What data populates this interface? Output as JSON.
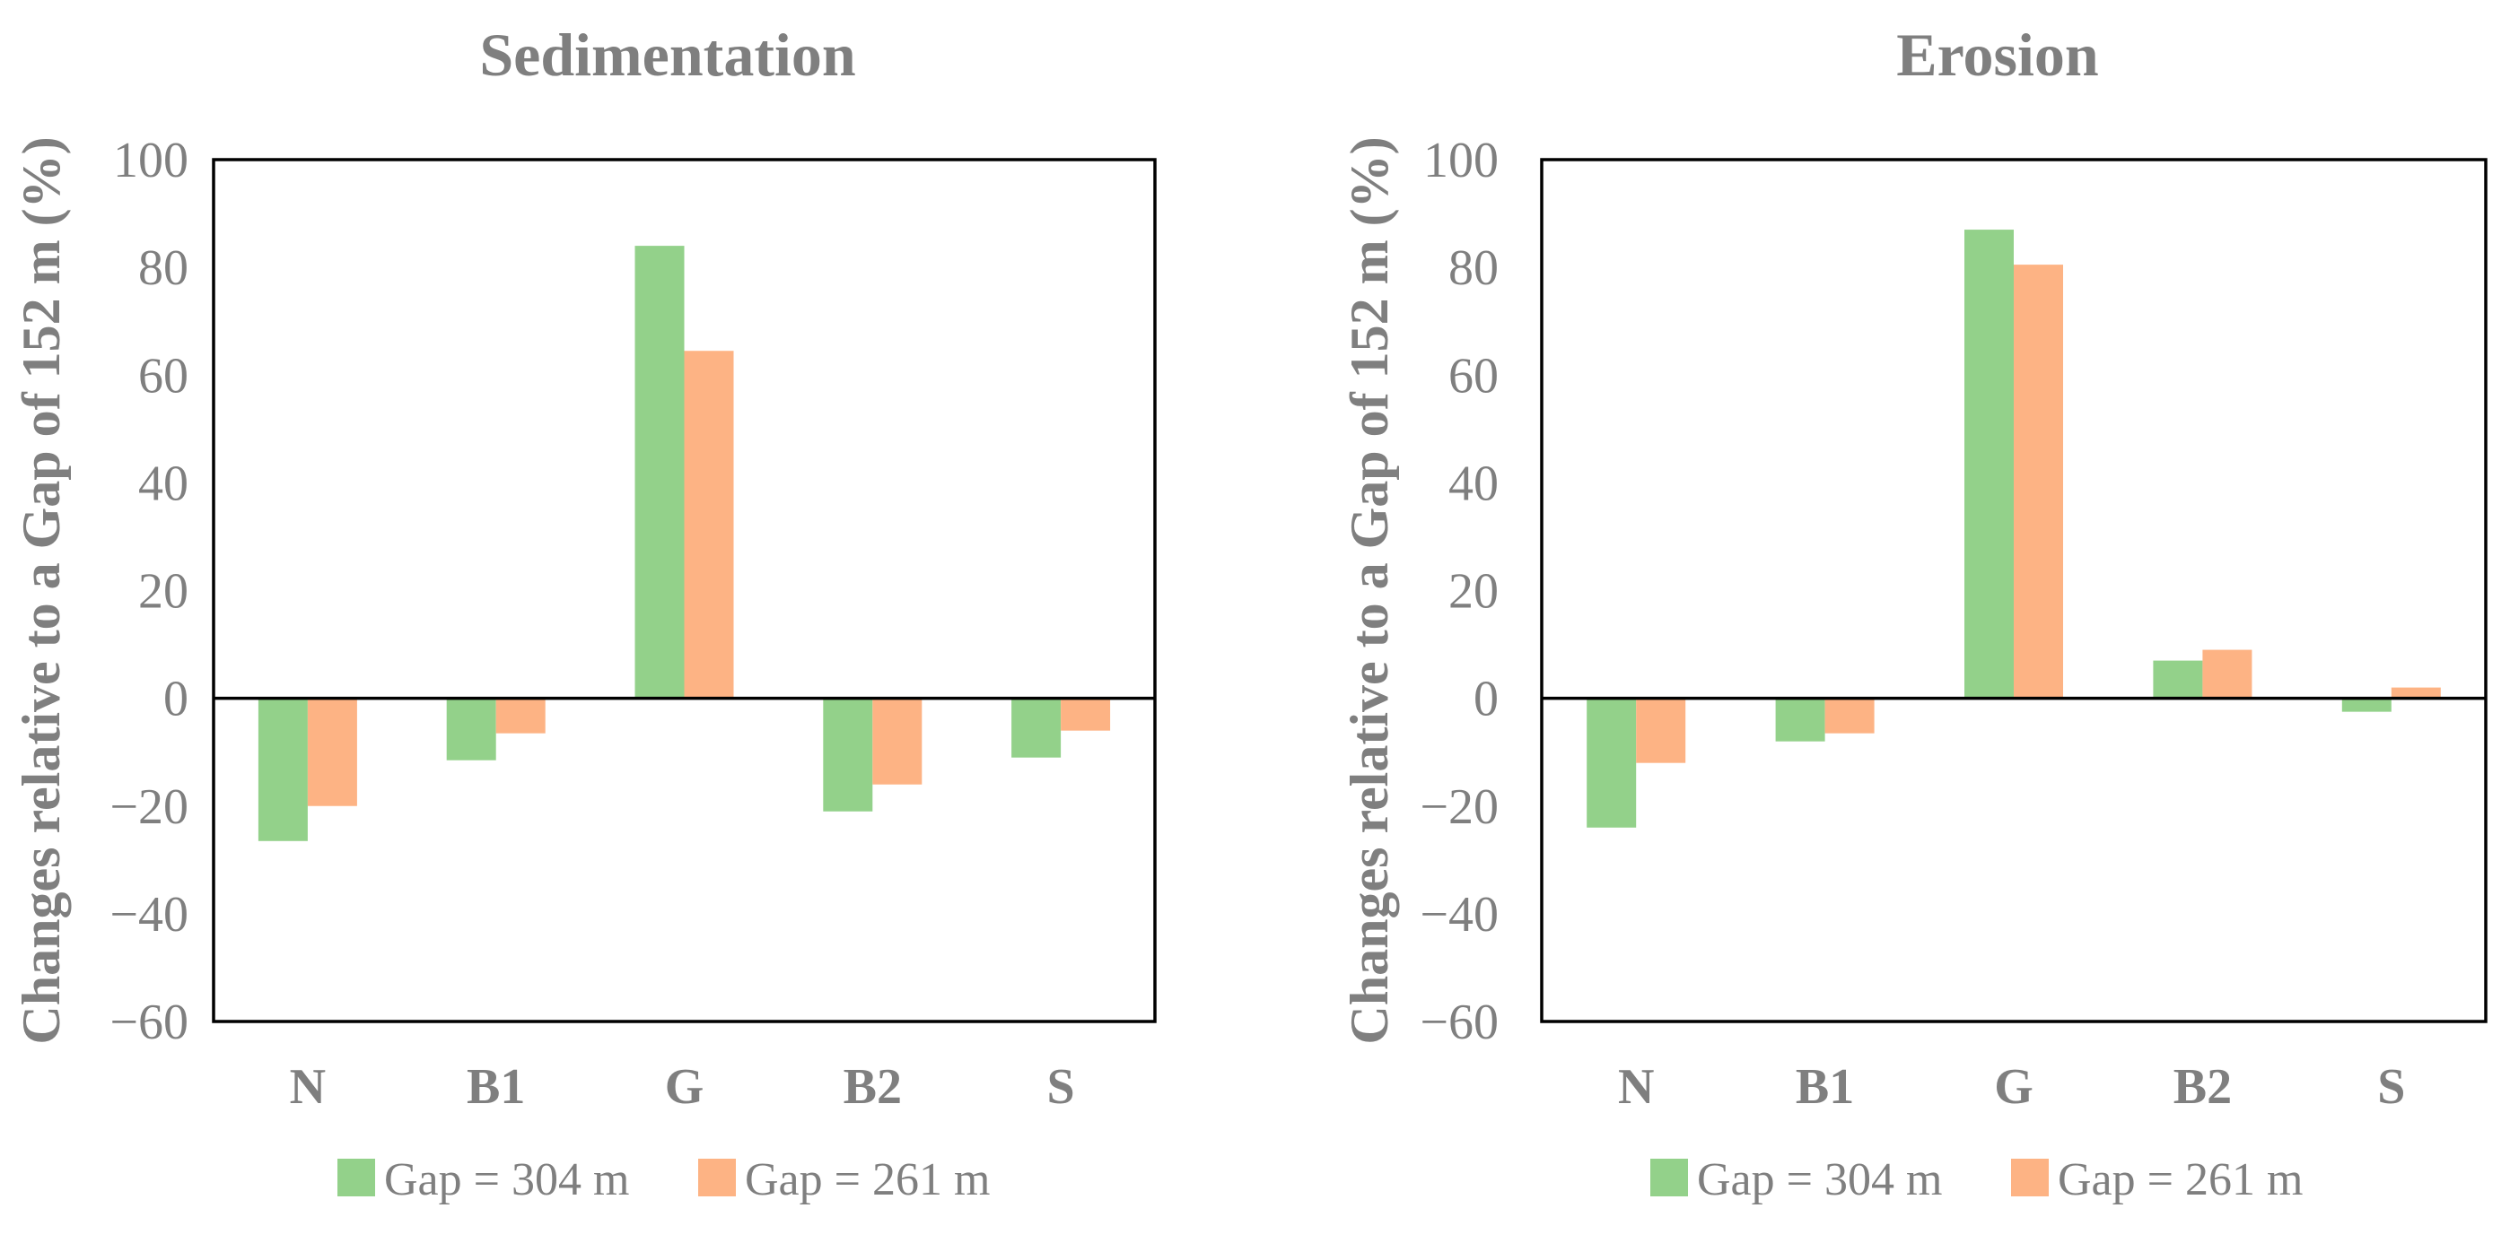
{
  "chart_data": [
    {
      "type": "bar",
      "title": "Sedimentation",
      "ylabel": "Changes relative to a Gap of 152 m (%)",
      "xlabel": "",
      "ylim": [
        -60,
        100
      ],
      "yticks": [
        -60,
        -40,
        -20,
        0,
        20,
        40,
        60,
        80,
        100
      ],
      "ytick_labels": [
        "−60",
        "−40",
        "−20",
        "0",
        "20",
        "40",
        "60",
        "80",
        "100"
      ],
      "categories": [
        "N",
        "B1",
        "G",
        "B2",
        "S"
      ],
      "series": [
        {
          "name": "Gap = 304 m",
          "color": "#93d18a",
          "values": [
            -26.5,
            -11.5,
            84,
            -21,
            -11
          ]
        },
        {
          "name": "Gap = 261 m",
          "color": "#fdb384",
          "values": [
            -20,
            -6.5,
            64.5,
            -16,
            -6
          ]
        }
      ],
      "legend_position": "bottom"
    },
    {
      "type": "bar",
      "title": "Erosion",
      "ylabel": "Changes relative to a Gap of 152 m (%)",
      "xlabel": "",
      "ylim": [
        -60,
        100
      ],
      "yticks": [
        -60,
        -40,
        -20,
        0,
        20,
        40,
        60,
        80,
        100
      ],
      "ytick_labels": [
        "−60",
        "−40",
        "−20",
        "0",
        "20",
        "40",
        "60",
        "80",
        "100"
      ],
      "categories": [
        "N",
        "B1",
        "G",
        "B2",
        "S"
      ],
      "series": [
        {
          "name": "Gap = 304 m",
          "color": "#93d18a",
          "values": [
            -24,
            -8,
            87,
            7,
            -2.5
          ]
        },
        {
          "name": "Gap = 261 m",
          "color": "#fdb384",
          "values": [
            -12,
            -6.5,
            80.5,
            9,
            2
          ]
        }
      ],
      "legend_position": "bottom"
    }
  ]
}
